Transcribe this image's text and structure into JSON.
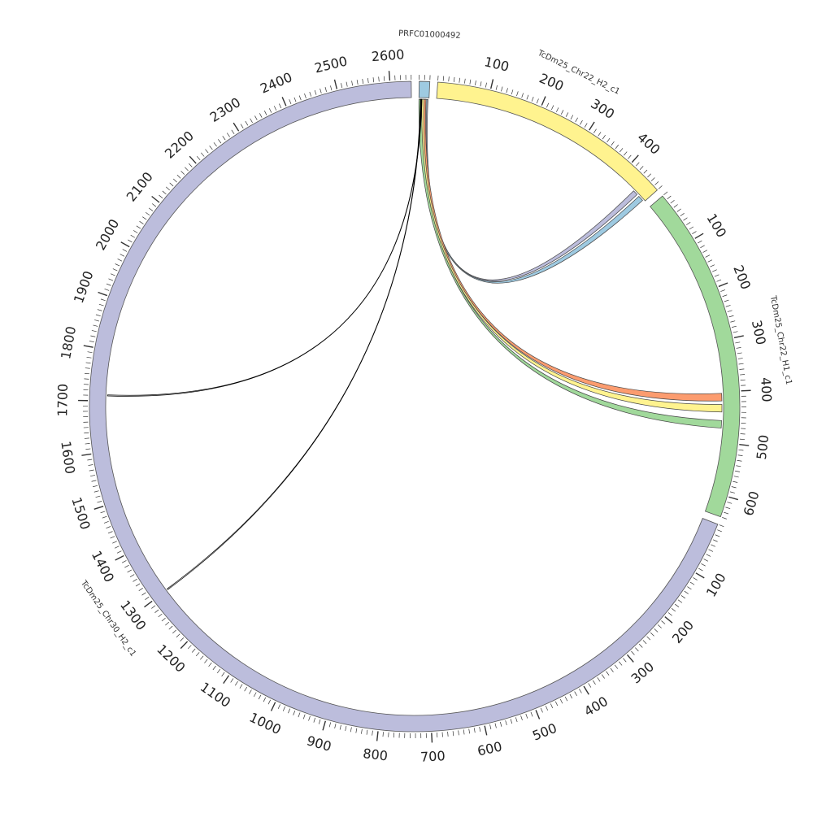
{
  "chart_data": {
    "type": "chord",
    "segments": [
      {
        "name": "PRFC01000492",
        "length": 20,
        "color": "#9ecae1",
        "tick_labels": []
      },
      {
        "name": "TcDm25_Chr22_H2_c1",
        "length": 470,
        "color": "#fff38f",
        "tick_labels": [
          "100",
          "200",
          "300",
          "400"
        ]
      },
      {
        "name": "TcDm25_Chr22_H1_c1",
        "length": 640,
        "color": "#a1d99b",
        "tick_labels": [
          "100",
          "200",
          "300",
          "400",
          "500",
          "600"
        ]
      },
      {
        "name": "TcDm25_Chr30_H2_c1",
        "length": 2640,
        "color": "#bcbddc",
        "tick_labels": [
          "100",
          "200",
          "300",
          "400",
          "500",
          "600",
          "700",
          "800",
          "900",
          "1000",
          "1100",
          "1200",
          "1300",
          "1400",
          "1500",
          "1600",
          "1700",
          "1800",
          "1900",
          "2000",
          "2100",
          "2200",
          "2300",
          "2400",
          "2500",
          "2600"
        ]
      }
    ],
    "links": [
      {
        "source": "PRFC01000492",
        "source_range": [
          12,
          18
        ],
        "target": "TcDm25_Chr22_H2_c1",
        "target_range": [
          440,
          450
        ],
        "color": "#bcbddc"
      },
      {
        "source": "PRFC01000492",
        "source_range": [
          10,
          16
        ],
        "target": "TcDm25_Chr22_H2_c1",
        "target_range": [
          455,
          466
        ],
        "color": "#9ecae1"
      },
      {
        "source": "PRFC01000492",
        "source_range": [
          8,
          14
        ],
        "target": "TcDm25_Chr22_H1_c1",
        "target_range": [
          403,
          418
        ],
        "color": "#fc9c6f"
      },
      {
        "source": "PRFC01000492",
        "source_range": [
          4,
          10
        ],
        "target": "TcDm25_Chr22_H1_c1",
        "target_range": [
          425,
          440
        ],
        "color": "#fff38f"
      },
      {
        "source": "PRFC01000492",
        "source_range": [
          0,
          6
        ],
        "target": "TcDm25_Chr22_H1_c1",
        "target_range": [
          457,
          472
        ],
        "color": "#a1d99b"
      },
      {
        "source": "PRFC01000492",
        "source_range": [
          3,
          4
        ],
        "target": "TcDm25_Chr30_H2_c1",
        "target_range": [
          1300,
          1302
        ],
        "color": "#000000"
      },
      {
        "source": "PRFC01000492",
        "source_range": [
          5,
          6
        ],
        "target": "TcDm25_Chr30_H2_c1",
        "target_range": [
          1710,
          1712
        ],
        "color": "#000000"
      }
    ]
  }
}
